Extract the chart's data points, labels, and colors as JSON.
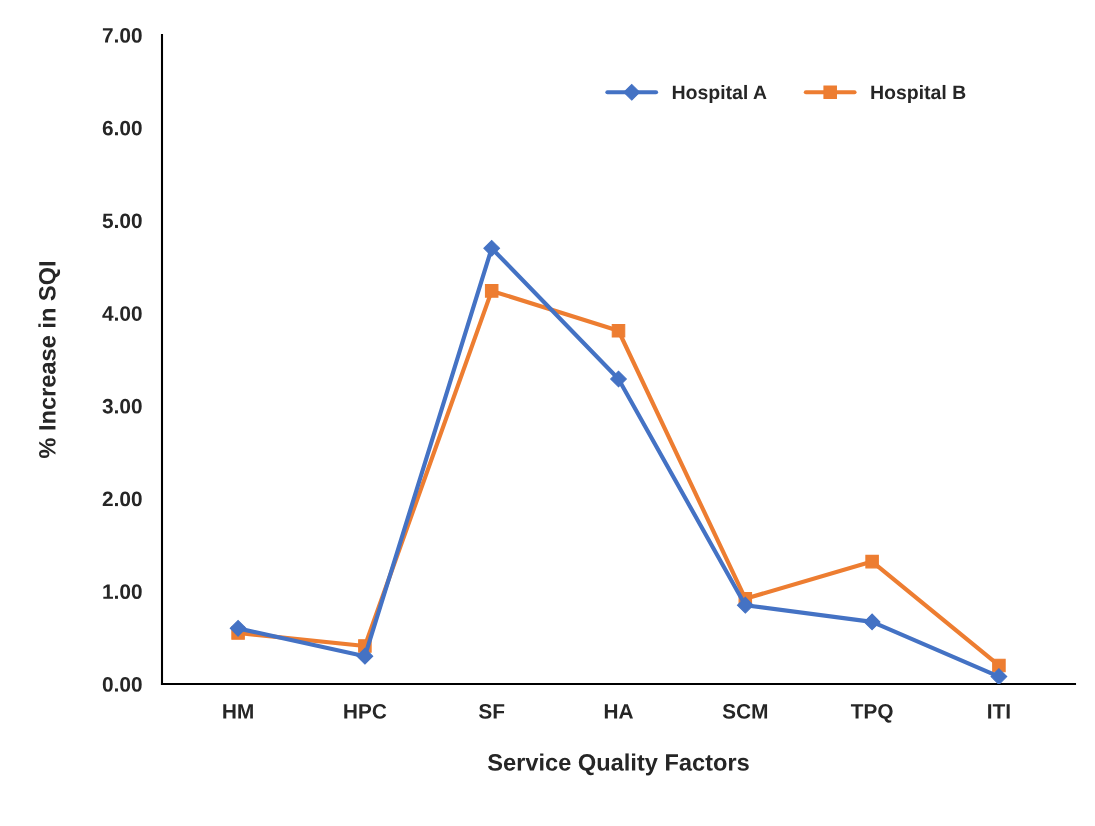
{
  "chart_data": {
    "type": "line",
    "xlabel": "Service Quality Factors",
    "ylabel": "% Increase in SQI",
    "categories": [
      "HM",
      "HPC",
      "SF",
      "HA",
      "SCM",
      "TPQ",
      "ITI"
    ],
    "series": [
      {
        "name": "Hospital A",
        "color": "#4472c4",
        "marker": "diamond",
        "values": [
          0.6,
          0.3,
          4.7,
          3.29,
          0.85,
          0.67,
          0.08
        ]
      },
      {
        "name": "Hospital B",
        "color": "#ed7d31",
        "marker": "square",
        "values": [
          0.55,
          0.41,
          4.24,
          3.81,
          0.92,
          1.32,
          0.2
        ]
      }
    ],
    "ylim": [
      0,
      7
    ],
    "yticks": [
      {
        "value": 0,
        "label": "0.00"
      },
      {
        "value": 1,
        "label": "1.00"
      },
      {
        "value": 2,
        "label": "2.00"
      },
      {
        "value": 3,
        "label": "3.00"
      },
      {
        "value": 4,
        "label": "4.00"
      },
      {
        "value": 5,
        "label": "5.00"
      },
      {
        "value": 6,
        "label": "6.00"
      },
      {
        "value": 7,
        "label": "7.00"
      }
    ],
    "grid": false,
    "legend": "top right",
    "line_style": "solid"
  }
}
